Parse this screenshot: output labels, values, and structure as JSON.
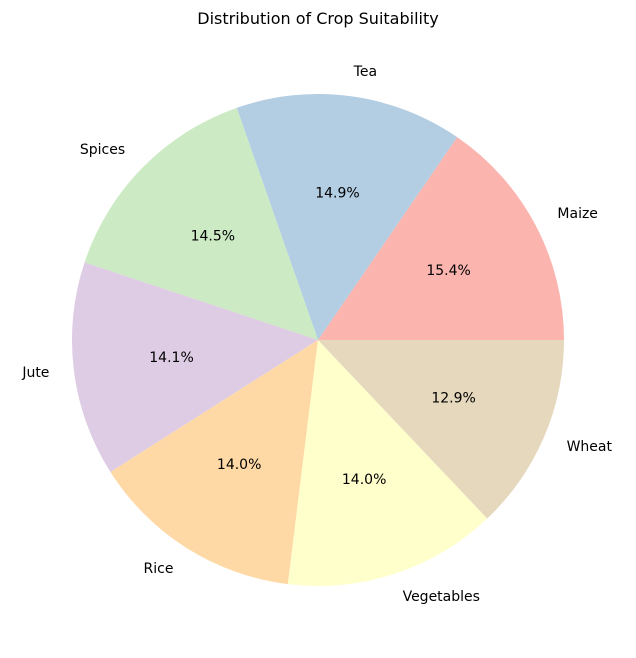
{
  "chart_data": {
    "type": "pie",
    "title": "Distribution of Crop Suitability",
    "start_angle_deg": 0,
    "direction": "counterclockwise",
    "legend": "none",
    "slices": [
      {
        "label": "Maize",
        "value": 15.4,
        "pct_label": "15.4%",
        "color": "#fbb4ae"
      },
      {
        "label": "Tea",
        "value": 14.9,
        "pct_label": "14.9%",
        "color": "#b3cde3"
      },
      {
        "label": "Spices",
        "value": 14.5,
        "pct_label": "14.5%",
        "color": "#ccebc5"
      },
      {
        "label": "Jute",
        "value": 14.1,
        "pct_label": "14.1%",
        "color": "#decbe4"
      },
      {
        "label": "Rice",
        "value": 14.0,
        "pct_label": "14.0%",
        "color": "#fed9a6"
      },
      {
        "label": "Vegetables",
        "value": 14.0,
        "pct_label": "14.0%",
        "color": "#ffffcc"
      },
      {
        "label": "Wheat",
        "value": 12.9,
        "pct_label": "12.9%",
        "color": "#e5d8bd"
      }
    ]
  }
}
